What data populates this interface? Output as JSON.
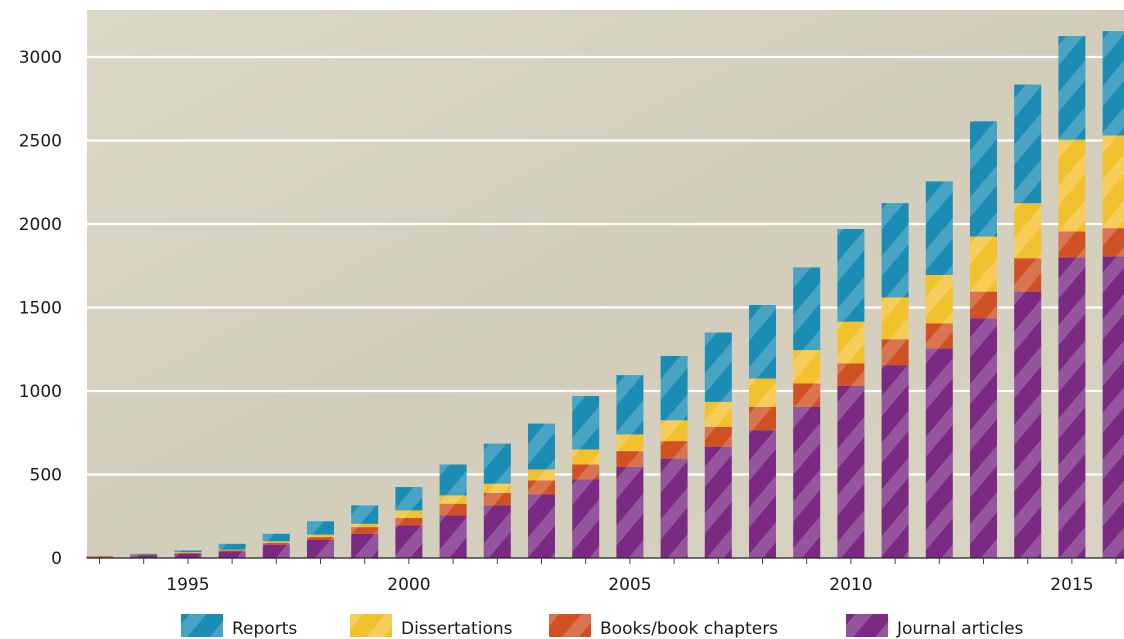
{
  "chart_data": {
    "type": "bar",
    "stacked": true,
    "title": "",
    "xlabel": "",
    "ylabel": "",
    "ylim": [
      0,
      3200
    ],
    "y_ticks": [
      0,
      500,
      1000,
      1500,
      2000,
      2500,
      3000
    ],
    "x_ticks": [
      1995,
      2000,
      2005,
      2010,
      2015
    ],
    "grid": true,
    "legend_position": "bottom",
    "categories": [
      1993,
      1994,
      1995,
      1996,
      1997,
      1998,
      1999,
      2000,
      2001,
      2002,
      2003,
      2004,
      2005,
      2006,
      2007,
      2008,
      2009,
      2010,
      2011,
      2012,
      2013,
      2014,
      2015,
      2016
    ],
    "series": [
      {
        "name": "Journal articles",
        "color": "#7b2a83",
        "values": [
          5,
          15,
          25,
          40,
          80,
          110,
          145,
          195,
          255,
          315,
          380,
          470,
          545,
          595,
          665,
          765,
          905,
          1030,
          1155,
          1255,
          1435,
          1595,
          1800,
          1805
        ]
      },
      {
        "name": "Books/book chapters",
        "color": "#cf5124",
        "values": [
          5,
          5,
          5,
          5,
          10,
          15,
          40,
          45,
          70,
          75,
          85,
          90,
          95,
          105,
          120,
          140,
          140,
          135,
          155,
          150,
          160,
          200,
          155,
          170
        ]
      },
      {
        "name": "Dissertations",
        "color": "#f2c12e",
        "values": [
          0,
          0,
          5,
          5,
          10,
          15,
          20,
          45,
          50,
          55,
          65,
          90,
          100,
          125,
          150,
          170,
          200,
          250,
          250,
          290,
          330,
          330,
          550,
          555
        ]
      },
      {
        "name": "Reports",
        "color": "#1b8db5",
        "values": [
          0,
          5,
          10,
          35,
          45,
          80,
          110,
          140,
          185,
          240,
          275,
          320,
          355,
          385,
          415,
          440,
          495,
          555,
          565,
          560,
          690,
          710,
          620,
          625
        ]
      }
    ]
  }
}
